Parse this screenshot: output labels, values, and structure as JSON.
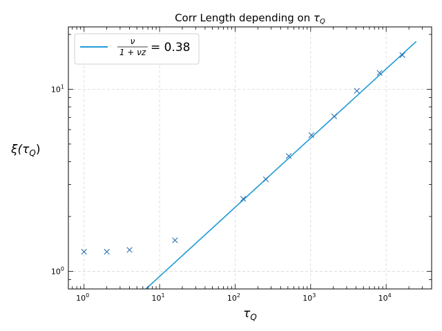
{
  "chart_data": {
    "type": "scatter",
    "title_prefix": "Corr Length depending on ",
    "title_symbol": "τ",
    "title_sub": "Q",
    "xlabel_symbol": "τ",
    "xlabel_sub": "Q",
    "ylabel_prefix": "ξ(",
    "ylabel_symbol": "τ",
    "ylabel_sub": "Q",
    "ylabel_suffix": ")",
    "xscale": "log",
    "yscale": "log",
    "xlim": [
      0.62,
      40000
    ],
    "ylim": [
      0.8,
      22
    ],
    "grid": true,
    "legend_position": "top-left",
    "x_ticks": [
      {
        "base": "10",
        "exp": "0"
      },
      {
        "base": "10",
        "exp": "1"
      },
      {
        "base": "10",
        "exp": "2"
      },
      {
        "base": "10",
        "exp": "3"
      },
      {
        "base": "10",
        "exp": "4"
      }
    ],
    "y_ticks": [
      {
        "base": "10",
        "exp": "0"
      },
      {
        "base": "10",
        "exp": "1"
      }
    ],
    "series": [
      {
        "kind": "scatter",
        "marker": "x",
        "color": "#2a6fb0",
        "x": [
          1,
          2,
          4,
          16,
          128,
          256,
          512,
          1024,
          2048,
          4096,
          8192,
          16384
        ],
        "y": [
          1.28,
          1.28,
          1.31,
          1.48,
          2.5,
          3.2,
          4.3,
          5.6,
          7.1,
          9.8,
          12.3,
          15.4
        ]
      },
      {
        "kind": "line",
        "color": "#1f9bd7",
        "legend_num": "ν",
        "legend_den": "1 + νz",
        "legend_value": "= 0.38",
        "x": [
          6.6,
          25000
        ],
        "y": [
          0.8,
          18.3
        ]
      }
    ]
  }
}
